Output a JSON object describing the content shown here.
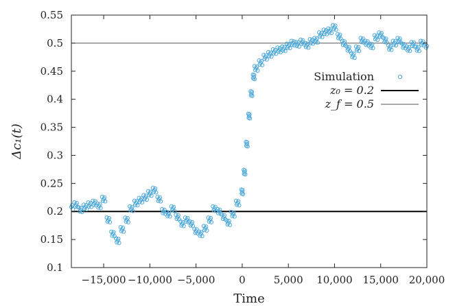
{
  "chart_data": {
    "type": "scatter",
    "title": "",
    "xlabel": "Time",
    "ylabel": "Δc₁(t)",
    "xlim": [
      -18500,
      20000
    ],
    "ylim": [
      0.1,
      0.55
    ],
    "xticks": [
      -15000,
      -10000,
      -5000,
      0,
      5000,
      10000,
      15000,
      20000
    ],
    "xtick_labels": [
      "−15,000",
      "−10,000",
      "−5,000",
      "0",
      "5,000",
      "10,000",
      "15,000",
      "20,000"
    ],
    "yticks": [
      0.1,
      0.15,
      0.2,
      0.25,
      0.3,
      0.35,
      0.4,
      0.45,
      0.5,
      0.55
    ],
    "ytick_labels": [
      "0.1",
      "0.15",
      "0.2",
      "0.25",
      "0.3",
      "0.35",
      "0.4",
      "0.45",
      "0.5",
      "0.55"
    ],
    "grid": false,
    "legend_position": "right",
    "colors": {
      "simulation": "#4da9dc",
      "z0": "#000000",
      "zf": "#555555"
    },
    "series": [
      {
        "name": "Simulation",
        "style": "open-circle",
        "x": [
          -18500,
          -18000,
          -17500,
          -17000,
          -16500,
          -16000,
          -15500,
          -15000,
          -14500,
          -14000,
          -13500,
          -13000,
          -12500,
          -12000,
          -11500,
          -11000,
          -10500,
          -10000,
          -9500,
          -9000,
          -8500,
          -8000,
          -7500,
          -7000,
          -6500,
          -6000,
          -5500,
          -5000,
          -4500,
          -4000,
          -3500,
          -3000,
          -2500,
          -2000,
          -1500,
          -1000,
          -500,
          0,
          250,
          500,
          750,
          1000,
          1250,
          1500,
          2000,
          2500,
          3000,
          3500,
          4000,
          4500,
          5000,
          5500,
          6000,
          6500,
          7000,
          7500,
          8000,
          8500,
          9000,
          9500,
          10000,
          10500,
          11000,
          11500,
          12000,
          12500,
          13000,
          13500,
          14000,
          14500,
          15000,
          15500,
          16000,
          16500,
          17000,
          17500,
          18000,
          18500,
          19000,
          19500,
          20000
        ],
        "y": [
          0.208,
          0.212,
          0.203,
          0.208,
          0.212,
          0.215,
          0.21,
          0.222,
          0.185,
          0.16,
          0.148,
          0.168,
          0.185,
          0.205,
          0.215,
          0.22,
          0.225,
          0.232,
          0.238,
          0.222,
          0.2,
          0.195,
          0.205,
          0.19,
          0.178,
          0.185,
          0.178,
          0.165,
          0.16,
          0.17,
          0.185,
          0.205,
          0.2,
          0.19,
          0.18,
          0.195,
          0.215,
          0.235,
          0.27,
          0.32,
          0.37,
          0.41,
          0.44,
          0.455,
          0.465,
          0.475,
          0.48,
          0.485,
          0.488,
          0.49,
          0.495,
          0.5,
          0.498,
          0.502,
          0.496,
          0.503,
          0.505,
          0.515,
          0.52,
          0.522,
          0.528,
          0.512,
          0.5,
          0.49,
          0.478,
          0.49,
          0.505,
          0.5,
          0.495,
          0.51,
          0.515,
          0.505,
          0.492,
          0.5,
          0.505,
          0.495,
          0.49,
          0.498,
          0.49,
          0.5,
          0.495
        ]
      },
      {
        "name": "z₀ = 0.2",
        "style": "line",
        "y_const": 0.2
      },
      {
        "name": "z_f = 0.5",
        "style": "line",
        "y_const": 0.5
      }
    ]
  }
}
